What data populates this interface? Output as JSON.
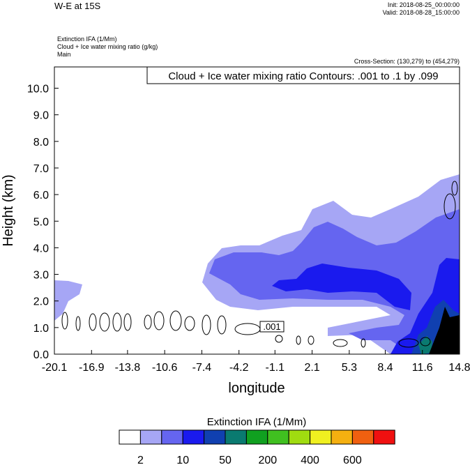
{
  "chart_data": {
    "type": "contour-cross-section",
    "title": "W-E at 15S",
    "init": "Init: 2018-08-25_00:00:00",
    "valid": "Valid: 2018-08-28_15:00:00",
    "fields": [
      "Extinction IFA   (1/Mm)",
      "Cloud + Ice water mixing ratio   (g/kg)",
      "Main"
    ],
    "cross_section": "Cross-Section: (130,279) to (454,279)",
    "contour_note": "Cloud + Ice water mixing ratio Contours: .001 to .1 by .099",
    "contour_label": ".001",
    "y_label": "Height (km)",
    "x_label": "longitude",
    "xlim": [
      -20.1,
      14.8
    ],
    "xticks": [
      -20.1,
      -16.9,
      -13.8,
      -10.6,
      -7.4,
      -4.2,
      -1.1,
      2.1,
      5.3,
      8.4,
      11.6,
      14.8
    ],
    "ylim": [
      0,
      10.8
    ],
    "yticks": [
      {
        "value": 0,
        "label": "0.0"
      },
      {
        "value": 1,
        "label": "1.0"
      },
      {
        "value": 2,
        "label": "2.0"
      },
      {
        "value": 3,
        "label": "3.0"
      },
      {
        "value": 4,
        "label": "4.0"
      },
      {
        "value": 5,
        "label": "5.0"
      },
      {
        "value": 6,
        "label": "6.0"
      },
      {
        "value": 7,
        "label": "7.0"
      },
      {
        "value": 8,
        "label": "8.0"
      },
      {
        "value": 9,
        "label": "9.0"
      },
      {
        "value": 10,
        "label": "10.0"
      }
    ],
    "colorbar": {
      "title": "Extinction IFA  (1/Mm)",
      "colors": [
        "#ffffff",
        "#a6a6f5",
        "#6565f0",
        "#1a1aee",
        "#1040b0",
        "#0a7a70",
        "#10a020",
        "#40c020",
        "#a0dc10",
        "#f0f020",
        "#f5b010",
        "#f06010",
        "#f01010"
      ],
      "ticks": [
        2,
        10,
        50,
        200,
        400,
        600
      ]
    }
  }
}
